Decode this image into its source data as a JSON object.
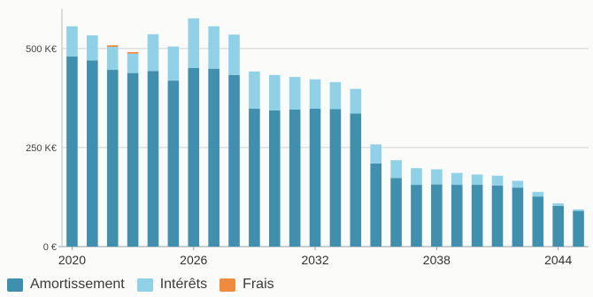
{
  "chart_data": {
    "type": "bar",
    "stacked": true,
    "title": "",
    "xlabel": "",
    "ylabel": "",
    "ylim": [
      0,
      600000
    ],
    "yticks": [
      {
        "value": 0,
        "label": "0 €"
      },
      {
        "value": 250000,
        "label": "250 K€"
      },
      {
        "value": 500000,
        "label": "500 K€"
      }
    ],
    "xtick_labels": [
      "2020",
      "2026",
      "2032",
      "2038",
      "2044"
    ],
    "grid": true,
    "legend_position": "bottom-left",
    "categories": [
      2020,
      2021,
      2022,
      2023,
      2024,
      2025,
      2026,
      2027,
      2028,
      2029,
      2030,
      2031,
      2032,
      2033,
      2034,
      2035,
      2036,
      2037,
      2038,
      2039,
      2040,
      2041,
      2042,
      2043,
      2044,
      2045
    ],
    "series": [
      {
        "name": "Amortissement",
        "color": "#3f8fae",
        "values": [
          480000,
          470000,
          446000,
          438000,
          443000,
          419000,
          451000,
          449000,
          433000,
          348000,
          344000,
          346000,
          348000,
          347000,
          336000,
          210000,
          173000,
          156000,
          157000,
          156000,
          156000,
          154000,
          149000,
          126000,
          103000,
          90000
        ]
      },
      {
        "name": "Intérêts",
        "color": "#8fd1e6",
        "values": [
          76000,
          63000,
          58000,
          49000,
          93000,
          86000,
          125000,
          107000,
          102000,
          94000,
          89000,
          82000,
          74000,
          68000,
          62000,
          48000,
          45000,
          42000,
          38000,
          30000,
          26000,
          25000,
          17000,
          12000,
          6000,
          4000
        ]
      },
      {
        "name": "Frais",
        "color": "#f08a3c",
        "values": [
          0,
          0,
          4000,
          4000,
          0,
          0,
          0,
          0,
          0,
          0,
          0,
          0,
          0,
          0,
          0,
          0,
          0,
          0,
          0,
          0,
          0,
          0,
          0,
          0,
          0,
          0
        ]
      }
    ]
  }
}
